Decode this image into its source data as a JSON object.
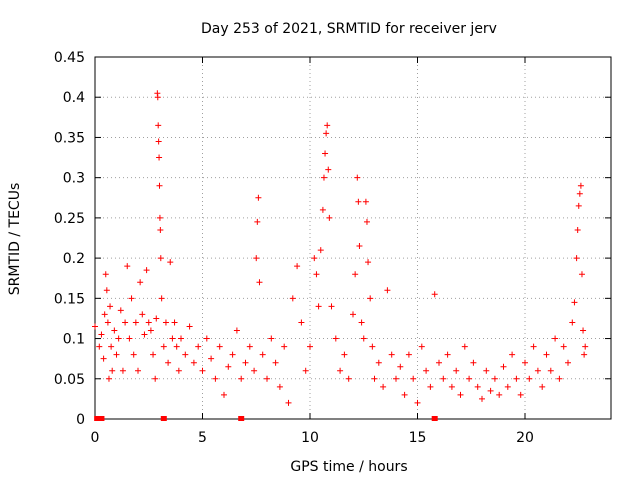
{
  "chart_data": {
    "type": "scatter",
    "title": "Day 253 of 2021, SRMTID for receiver jerv",
    "xlabel": "GPS time / hours",
    "ylabel": "SRMTID / TECUs",
    "xlim": [
      0,
      24
    ],
    "ylim": [
      0,
      0.45
    ],
    "xticks": [
      0,
      5,
      10,
      15,
      20
    ],
    "xtick_labels": [
      "0",
      "5",
      "10",
      "15",
      "20"
    ],
    "yticks": [
      0,
      0.05,
      0.1,
      0.15,
      0.2,
      0.25,
      0.3,
      0.35,
      0.4,
      0.45
    ],
    "ytick_labels": [
      "0",
      "0.05",
      "0.1",
      "0.15",
      "0.2",
      "0.25",
      "0.3",
      "0.35",
      "0.4",
      "0.45"
    ],
    "grid": true,
    "series_color": "#ff0000",
    "marker": "plus",
    "series": [
      {
        "name": "SRMTID",
        "points": [
          [
            0.0,
            0.115
          ],
          [
            0.2,
            0.09
          ],
          [
            0.3,
            0.105
          ],
          [
            0.4,
            0.075
          ],
          [
            0.45,
            0.13
          ],
          [
            0.5,
            0.18
          ],
          [
            0.55,
            0.16
          ],
          [
            0.6,
            0.12
          ],
          [
            0.65,
            0.05
          ],
          [
            0.7,
            0.14
          ],
          [
            0.75,
            0.09
          ],
          [
            0.8,
            0.06
          ],
          [
            0.9,
            0.11
          ],
          [
            1.0,
            0.08
          ],
          [
            1.1,
            0.1
          ],
          [
            1.2,
            0.135
          ],
          [
            1.3,
            0.06
          ],
          [
            1.4,
            0.12
          ],
          [
            1.5,
            0.19
          ],
          [
            1.6,
            0.1
          ],
          [
            1.7,
            0.15
          ],
          [
            1.8,
            0.08
          ],
          [
            1.9,
            0.12
          ],
          [
            2.0,
            0.06
          ],
          [
            2.1,
            0.17
          ],
          [
            2.2,
            0.13
          ],
          [
            2.3,
            0.105
          ],
          [
            2.4,
            0.185
          ],
          [
            2.5,
            0.12
          ],
          [
            2.6,
            0.11
          ],
          [
            2.7,
            0.08
          ],
          [
            2.8,
            0.05
          ],
          [
            2.85,
            0.125
          ],
          [
            2.9,
            0.405
          ],
          [
            2.92,
            0.4
          ],
          [
            2.94,
            0.365
          ],
          [
            2.96,
            0.345
          ],
          [
            2.98,
            0.325
          ],
          [
            3.0,
            0.29
          ],
          [
            3.02,
            0.25
          ],
          [
            3.04,
            0.235
          ],
          [
            3.06,
            0.2
          ],
          [
            3.1,
            0.15
          ],
          [
            3.2,
            0.09
          ],
          [
            3.3,
            0.12
          ],
          [
            3.4,
            0.07
          ],
          [
            3.5,
            0.195
          ],
          [
            3.6,
            0.1
          ],
          [
            3.7,
            0.12
          ],
          [
            3.8,
            0.09
          ],
          [
            3.9,
            0.06
          ],
          [
            4.0,
            0.1
          ],
          [
            4.2,
            0.08
          ],
          [
            4.4,
            0.115
          ],
          [
            4.6,
            0.07
          ],
          [
            4.8,
            0.09
          ],
          [
            5.0,
            0.06
          ],
          [
            5.2,
            0.1
          ],
          [
            5.4,
            0.075
          ],
          [
            5.6,
            0.05
          ],
          [
            5.8,
            0.09
          ],
          [
            6.0,
            0.03
          ],
          [
            6.2,
            0.065
          ],
          [
            6.4,
            0.08
          ],
          [
            6.6,
            0.11
          ],
          [
            6.8,
            0.05
          ],
          [
            7.0,
            0.07
          ],
          [
            7.2,
            0.09
          ],
          [
            7.4,
            0.06
          ],
          [
            7.5,
            0.2
          ],
          [
            7.55,
            0.245
          ],
          [
            7.6,
            0.275
          ],
          [
            7.65,
            0.17
          ],
          [
            7.8,
            0.08
          ],
          [
            8.0,
            0.05
          ],
          [
            8.2,
            0.1
          ],
          [
            8.4,
            0.07
          ],
          [
            8.6,
            0.04
          ],
          [
            8.8,
            0.09
          ],
          [
            9.0,
            0.02
          ],
          [
            9.2,
            0.15
          ],
          [
            9.4,
            0.19
          ],
          [
            9.6,
            0.12
          ],
          [
            9.8,
            0.06
          ],
          [
            10.0,
            0.09
          ],
          [
            10.2,
            0.2
          ],
          [
            10.3,
            0.18
          ],
          [
            10.4,
            0.14
          ],
          [
            10.5,
            0.21
          ],
          [
            10.6,
            0.26
          ],
          [
            10.65,
            0.3
          ],
          [
            10.7,
            0.33
          ],
          [
            10.75,
            0.355
          ],
          [
            10.8,
            0.365
          ],
          [
            10.85,
            0.31
          ],
          [
            10.9,
            0.25
          ],
          [
            11.0,
            0.14
          ],
          [
            11.2,
            0.1
          ],
          [
            11.4,
            0.06
          ],
          [
            11.6,
            0.08
          ],
          [
            11.8,
            0.05
          ],
          [
            12.0,
            0.13
          ],
          [
            12.1,
            0.18
          ],
          [
            12.2,
            0.3
          ],
          [
            12.25,
            0.27
          ],
          [
            12.3,
            0.215
          ],
          [
            12.4,
            0.12
          ],
          [
            12.5,
            0.1
          ],
          [
            12.6,
            0.27
          ],
          [
            12.65,
            0.245
          ],
          [
            12.7,
            0.195
          ],
          [
            12.8,
            0.15
          ],
          [
            12.9,
            0.09
          ],
          [
            13.0,
            0.05
          ],
          [
            13.2,
            0.07
          ],
          [
            13.4,
            0.04
          ],
          [
            13.6,
            0.16
          ],
          [
            13.8,
            0.08
          ],
          [
            14.0,
            0.05
          ],
          [
            14.2,
            0.065
          ],
          [
            14.4,
            0.03
          ],
          [
            14.6,
            0.08
          ],
          [
            14.8,
            0.05
          ],
          [
            15.0,
            0.02
          ],
          [
            15.2,
            0.09
          ],
          [
            15.4,
            0.06
          ],
          [
            15.6,
            0.04
          ],
          [
            15.8,
            0.155
          ],
          [
            16.0,
            0.07
          ],
          [
            16.2,
            0.05
          ],
          [
            16.4,
            0.08
          ],
          [
            16.6,
            0.04
          ],
          [
            16.8,
            0.06
          ],
          [
            17.0,
            0.03
          ],
          [
            17.2,
            0.09
          ],
          [
            17.4,
            0.05
          ],
          [
            17.6,
            0.07
          ],
          [
            17.8,
            0.04
          ],
          [
            18.0,
            0.025
          ],
          [
            18.2,
            0.06
          ],
          [
            18.4,
            0.035
          ],
          [
            18.6,
            0.05
          ],
          [
            18.8,
            0.03
          ],
          [
            19.0,
            0.065
          ],
          [
            19.2,
            0.04
          ],
          [
            19.4,
            0.08
          ],
          [
            19.6,
            0.05
          ],
          [
            19.8,
            0.03
          ],
          [
            20.0,
            0.07
          ],
          [
            20.2,
            0.05
          ],
          [
            20.4,
            0.09
          ],
          [
            20.6,
            0.06
          ],
          [
            20.8,
            0.04
          ],
          [
            21.0,
            0.08
          ],
          [
            21.2,
            0.06
          ],
          [
            21.4,
            0.1
          ],
          [
            21.6,
            0.05
          ],
          [
            21.8,
            0.09
          ],
          [
            22.0,
            0.07
          ],
          [
            22.2,
            0.12
          ],
          [
            22.3,
            0.145
          ],
          [
            22.4,
            0.2
          ],
          [
            22.45,
            0.235
          ],
          [
            22.5,
            0.265
          ],
          [
            22.55,
            0.28
          ],
          [
            22.6,
            0.29
          ],
          [
            22.65,
            0.18
          ],
          [
            22.7,
            0.11
          ],
          [
            22.75,
            0.08
          ],
          [
            22.8,
            0.09
          ]
        ]
      }
    ],
    "zero_markers": [
      0.1,
      0.2,
      0.3,
      3.2,
      6.8,
      15.8
    ]
  }
}
